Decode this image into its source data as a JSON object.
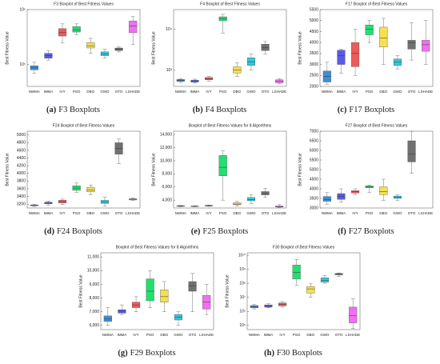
{
  "chart_data": [
    {
      "type": "box",
      "title": "F3 Boxplot of Best Fitness Values",
      "ylabel": "Best Fitness Value",
      "caption_label": "(a)",
      "caption": "F3 Boxplots",
      "categories": [
        "NWMA",
        "IMMA",
        "IVY",
        "PSO",
        "DBO",
        "GWO",
        "OTO",
        "LSHADE"
      ],
      "colors": [
        "#3d8fd6",
        "#5a5ae6",
        "#f05a5a",
        "#22e070",
        "#f5e050",
        "#30c8e0",
        "#707070",
        "#f070f0"
      ],
      "log": true,
      "ylim": [
        40000,
        1000000
      ],
      "yticks": [
        {
          "value": 100000,
          "label": "10⁵"
        },
        {
          "value": 1000000,
          "label": "10⁶"
        }
      ],
      "boxes": [
        {
          "min": 70000,
          "q1": 80000,
          "median": 87000,
          "q3": 95000,
          "max": 110000
        },
        {
          "min": 120000,
          "q1": 130000,
          "median": 145000,
          "q3": 160000,
          "max": 180000
        },
        {
          "min": 250000,
          "q1": 330000,
          "median": 380000,
          "q3": 450000,
          "max": 550000
        },
        {
          "min": 350000,
          "q1": 390000,
          "median": 430000,
          "q3": 490000,
          "max": 550000
        },
        {
          "min": 160000,
          "q1": 200000,
          "median": 220000,
          "q3": 250000,
          "max": 300000
        },
        {
          "min": 130000,
          "q1": 145000,
          "median": 155000,
          "q3": 170000,
          "max": 190000
        },
        {
          "min": 170000,
          "q1": 180000,
          "median": 190000,
          "q3": 200000,
          "max": 210000
        },
        {
          "min": 230000,
          "q1": 380000,
          "median": 500000,
          "q3": 620000,
          "max": 750000
        }
      ]
    },
    {
      "type": "box",
      "title": "F4 Boxplot of Best Fitness Values",
      "ylabel": "Best Fitness Value",
      "caption_label": "(b)",
      "caption": "F4 Boxplots",
      "categories": [
        "NWMA",
        "IMMA",
        "IVY",
        "PSO",
        "DBO",
        "GWO",
        "OTO",
        "LSHADE"
      ],
      "colors": [
        "#3d8fd6",
        "#5a5ae6",
        "#f05a5a",
        "#22e070",
        "#f5e050",
        "#30c8e0",
        "#707070",
        "#f070f0"
      ],
      "log": true,
      "ylim": [
        400,
        30000
      ],
      "yticks": [
        {
          "value": 1000,
          "label": "10³"
        },
        {
          "value": 10000,
          "label": "10⁴"
        }
      ],
      "boxes": [
        {
          "min": 500,
          "q1": 530,
          "median": 560,
          "q3": 590,
          "max": 620
        },
        {
          "min": 480,
          "q1": 510,
          "median": 540,
          "q3": 570,
          "max": 600
        },
        {
          "min": 540,
          "q1": 580,
          "median": 620,
          "q3": 660,
          "max": 700
        },
        {
          "min": 8000,
          "q1": 16000,
          "median": 18000,
          "q3": 20000,
          "max": 23000
        },
        {
          "min": 700,
          "q1": 850,
          "median": 1000,
          "q3": 1200,
          "max": 1500
        },
        {
          "min": 1000,
          "q1": 1300,
          "median": 1600,
          "q3": 2000,
          "max": 2500
        },
        {
          "min": 2500,
          "q1": 3000,
          "median": 3500,
          "q3": 4300,
          "max": 5000
        },
        {
          "min": 460,
          "q1": 490,
          "median": 530,
          "q3": 580,
          "max": 620
        }
      ]
    },
    {
      "type": "box",
      "title": "F17 Boxplot of Best Fitness Values",
      "ylabel": "Best Fitness Value",
      "caption_label": "(c)",
      "caption": "F17 Boxplots",
      "categories": [
        "NWMA",
        "IMMA",
        "IVY",
        "PSO",
        "DBO",
        "GWO",
        "OTO",
        "LSHADE"
      ],
      "colors": [
        "#3d8fd6",
        "#5a5ae6",
        "#f05a5a",
        "#22e070",
        "#f5e050",
        "#30c8e0",
        "#707070",
        "#f070f0"
      ],
      "log": false,
      "ylim": [
        2000,
        5500
      ],
      "yticks": [
        2000,
        2500,
        3000,
        3500,
        4000,
        4500,
        5000,
        5500
      ],
      "boxes": [
        {
          "min": 2100,
          "q1": 2200,
          "median": 2450,
          "q3": 2700,
          "max": 3100
        },
        {
          "min": 2600,
          "q1": 3000,
          "median": 3400,
          "q3": 3650,
          "max": 3700
        },
        {
          "min": 2500,
          "q1": 2900,
          "median": 3500,
          "q3": 4000,
          "max": 4600
        },
        {
          "min": 4000,
          "q1": 4350,
          "median": 4600,
          "q3": 4800,
          "max": 5000
        },
        {
          "min": 3000,
          "q1": 3800,
          "median": 4200,
          "q3": 4700,
          "max": 5100
        },
        {
          "min": 2800,
          "q1": 2950,
          "median": 3100,
          "q3": 3250,
          "max": 3400
        },
        {
          "min": 3200,
          "q1": 3700,
          "median": 4000,
          "q3": 4100,
          "max": 4900
        },
        {
          "min": 3000,
          "q1": 3600,
          "median": 3900,
          "q3": 4100,
          "max": 5000
        }
      ]
    },
    {
      "type": "box",
      "title": "F24 Boxplot of Best Fitness Values",
      "ylabel": "Best Fitness Value",
      "caption_label": "(d)",
      "caption": "F24 Boxplots",
      "categories": [
        "NWMA",
        "IMMA",
        "IVY",
        "PSO",
        "DBO",
        "GWO",
        "OTO",
        "LSHADE"
      ],
      "colors": [
        "#3d8fd6",
        "#5a5ae6",
        "#f05a5a",
        "#22e070",
        "#f5e050",
        "#30c8e0",
        "#707070",
        "#f070f0"
      ],
      "log": false,
      "ylim": [
        3100,
        5100
      ],
      "yticks": [
        3200,
        3400,
        3600,
        3800,
        4000,
        4200,
        4400,
        4600,
        4800,
        5000
      ],
      "boxes": [
        {
          "min": 3140,
          "q1": 3160,
          "median": 3170,
          "q3": 3180,
          "max": 3200
        },
        {
          "min": 3180,
          "q1": 3210,
          "median": 3230,
          "q3": 3250,
          "max": 3280
        },
        {
          "min": 3190,
          "q1": 3230,
          "median": 3270,
          "q3": 3300,
          "max": 3330
        },
        {
          "min": 3500,
          "q1": 3560,
          "median": 3620,
          "q3": 3680,
          "max": 3750
        },
        {
          "min": 3450,
          "q1": 3520,
          "median": 3570,
          "q3": 3640,
          "max": 3700
        },
        {
          "min": 3150,
          "q1": 3220,
          "median": 3260,
          "q3": 3300,
          "max": 3380
        },
        {
          "min": 4250,
          "q1": 4500,
          "median": 4650,
          "q3": 4800,
          "max": 4900
        },
        {
          "min": 3300,
          "q1": 3310,
          "median": 3330,
          "q3": 3340,
          "max": 3360
        }
      ]
    },
    {
      "type": "box",
      "title": "Boxplot of Best Fitness Values for 8 Algorithms",
      "ylabel": "Best Fitness Value",
      "caption_label": "(e)",
      "caption": "F25 Boxplots",
      "categories": [
        "NWMA",
        "IMMA",
        "IVY",
        "PSO",
        "DBO",
        "GWO",
        "OTO",
        "LSHADE"
      ],
      "colors": [
        "#3d8fd6",
        "#5a5ae6",
        "#f05a5a",
        "#22e070",
        "#f5e050",
        "#30c8e0",
        "#707070",
        "#f070f0"
      ],
      "log": false,
      "ylim": [
        2800,
        14500
      ],
      "yticks": [
        {
          "value": 4000,
          "label": "4,000"
        },
        {
          "value": 6000,
          "label": "6,000"
        },
        {
          "value": 8000,
          "label": "8,000"
        },
        {
          "value": 10000,
          "label": "10,000"
        },
        {
          "value": 12000,
          "label": "12,000"
        },
        {
          "value": 14000,
          "label": "14,000"
        }
      ],
      "boxes": [
        {
          "min": 3000,
          "q1": 3050,
          "median": 3100,
          "q3": 3150,
          "max": 3200
        },
        {
          "min": 3000,
          "q1": 3030,
          "median": 3060,
          "q3": 3100,
          "max": 3150
        },
        {
          "min": 3050,
          "q1": 3100,
          "median": 3150,
          "q3": 3200,
          "max": 3250
        },
        {
          "min": 4000,
          "q1": 7700,
          "median": 9000,
          "q3": 10800,
          "max": 11500
        },
        {
          "min": 3100,
          "q1": 3300,
          "median": 3400,
          "q3": 3600,
          "max": 3800
        },
        {
          "min": 3500,
          "q1": 3900,
          "median": 4100,
          "q3": 4400,
          "max": 4800
        },
        {
          "min": 4400,
          "q1": 4800,
          "median": 5000,
          "q3": 5300,
          "max": 5800
        },
        {
          "min": 2900,
          "q1": 2950,
          "median": 3000,
          "q3": 3100,
          "max": 3300
        }
      ]
    },
    {
      "type": "box",
      "title": "F27 Boxplot of Best Fitness Values",
      "ylabel": "Best Fitness Value",
      "caption_label": "(f)",
      "caption": "F27 Boxplots",
      "categories": [
        "NWMA",
        "IMMA",
        "IVY",
        "PSO",
        "DBO",
        "GWO",
        "OTO",
        "LSHADE"
      ],
      "colors": [
        "#3d8fd6",
        "#5a5ae6",
        "#f05a5a",
        "#22e070",
        "#f5e050",
        "#30c8e0",
        "#707070",
        "#f070f0"
      ],
      "log": false,
      "ylim": [
        3000,
        7000
      ],
      "yticks": [
        3000,
        3500,
        4000,
        4500,
        5000,
        5500,
        6000,
        6500,
        7000
      ],
      "boxes": [
        {
          "min": 3200,
          "q1": 3350,
          "median": 3450,
          "q3": 3600,
          "max": 3800
        },
        {
          "min": 3300,
          "q1": 3450,
          "median": 3600,
          "q3": 3750,
          "max": 4000
        },
        {
          "min": 3700,
          "q1": 3780,
          "median": 3850,
          "q3": 3900,
          "max": 4000
        },
        {
          "min": 3800,
          "q1": 4050,
          "median": 4100,
          "q3": 4150,
          "max": 4200
        },
        {
          "min": 3400,
          "q1": 3700,
          "median": 3850,
          "q3": 4100,
          "max": 4500
        },
        {
          "min": 3400,
          "q1": 3500,
          "median": 3560,
          "q3": 3620,
          "max": 3700
        },
        {
          "min": 4800,
          "q1": 5400,
          "median": 5800,
          "q3": 6500,
          "max": 7000
        },
        null
      ]
    },
    {
      "type": "box",
      "title": "Boxplot of Best Fitness Values for 8 Algorithms",
      "ylabel": "Best Fitness Value",
      "caption_label": "(g)",
      "caption": "F29 Boxplots",
      "categories": [
        "NWMA",
        "IMMA",
        "IVY",
        "PSO",
        "DBO",
        "GWO",
        "OTO",
        "LSHADE"
      ],
      "colors": [
        "#3d8fd6",
        "#5a5ae6",
        "#f05a5a",
        "#22e070",
        "#f5e050",
        "#30c8e0",
        "#707070",
        "#f070f0"
      ],
      "log": false,
      "ylim": [
        5700,
        11300
      ],
      "yticks": [
        {
          "value": 6000,
          "label": "6,000"
        },
        {
          "value": 7000,
          "label": "7,000"
        },
        {
          "value": 8000,
          "label": "8,000"
        },
        {
          "value": 9000,
          "label": "9,000"
        },
        {
          "value": 10000,
          "label": "10,000"
        },
        {
          "value": 11000,
          "label": "11,000"
        }
      ],
      "boxes": [
        {
          "min": 6000,
          "q1": 6300,
          "median": 6500,
          "q3": 6700,
          "max": 7300
        },
        {
          "min": 6800,
          "q1": 6900,
          "median": 7050,
          "q3": 7150,
          "max": 7500
        },
        {
          "min": 7000,
          "q1": 7300,
          "median": 7500,
          "q3": 7700,
          "max": 8100
        },
        {
          "min": 7300,
          "q1": 7800,
          "median": 8500,
          "q3": 9400,
          "max": 10000
        },
        {
          "min": 7000,
          "q1": 7700,
          "median": 8100,
          "q3": 8600,
          "max": 9200
        },
        {
          "min": 6000,
          "q1": 6400,
          "median": 6600,
          "q3": 6800,
          "max": 7000
        },
        {
          "min": 7000,
          "q1": 8500,
          "median": 8900,
          "q3": 9200,
          "max": 9800
        },
        {
          "min": 6800,
          "q1": 7200,
          "median": 7700,
          "q3": 8200,
          "max": 9000
        }
      ]
    },
    {
      "type": "box",
      "title": "F30 Boxplot of Best Fitness Values",
      "ylabel": "Best Fitness Value",
      "caption_label": "(h)",
      "caption": "F30 Boxplots",
      "categories": [
        "NWMA",
        "IMMA",
        "IVY",
        "PSO",
        "DBO",
        "GWO",
        "OTO",
        "LSHADE"
      ],
      "colors": [
        "#3d8fd6",
        "#5a5ae6",
        "#f05a5a",
        "#22e070",
        "#f5e050",
        "#30c8e0",
        "#707070",
        "#f070f0"
      ],
      "log": true,
      "ylim": [
        50000,
        15000000000
      ],
      "yticks": [
        {
          "value": 100000,
          "label": "10⁵"
        },
        {
          "value": 1000000,
          "label": "10⁶"
        },
        {
          "value": 10000000,
          "label": "10⁷"
        },
        {
          "value": 100000000,
          "label": "10⁸"
        },
        {
          "value": 1000000000,
          "label": "10⁹"
        },
        {
          "value": 10000000000,
          "label": "10¹⁰"
        }
      ],
      "boxes": [
        {
          "min": 1500000,
          "q1": 1800000,
          "median": 2200000,
          "q3": 2600000,
          "max": 3000000
        },
        {
          "min": 1800000,
          "q1": 2000000,
          "median": 2500000,
          "q3": 2900000,
          "max": 3500000
        },
        {
          "min": 2000000,
          "q1": 2500000,
          "median": 3000000,
          "q3": 4000000,
          "max": 5000000
        },
        {
          "min": 70000000,
          "q1": 200000000,
          "median": 600000000,
          "q3": 2000000000,
          "max": 5000000000
        },
        {
          "min": 10000000,
          "q1": 20000000,
          "median": 40000000,
          "q3": 60000000,
          "max": 100000000
        },
        {
          "min": 100000000,
          "q1": 120000000,
          "median": 160000000,
          "q3": 250000000,
          "max": 350000000
        },
        {
          "min": 300000000,
          "q1": 400000000,
          "median": 450000000,
          "q3": 500000000,
          "max": 550000000
        },
        {
          "min": 60000,
          "q1": 150000,
          "median": 500000,
          "q3": 2000000,
          "max": 8000000
        }
      ]
    }
  ]
}
